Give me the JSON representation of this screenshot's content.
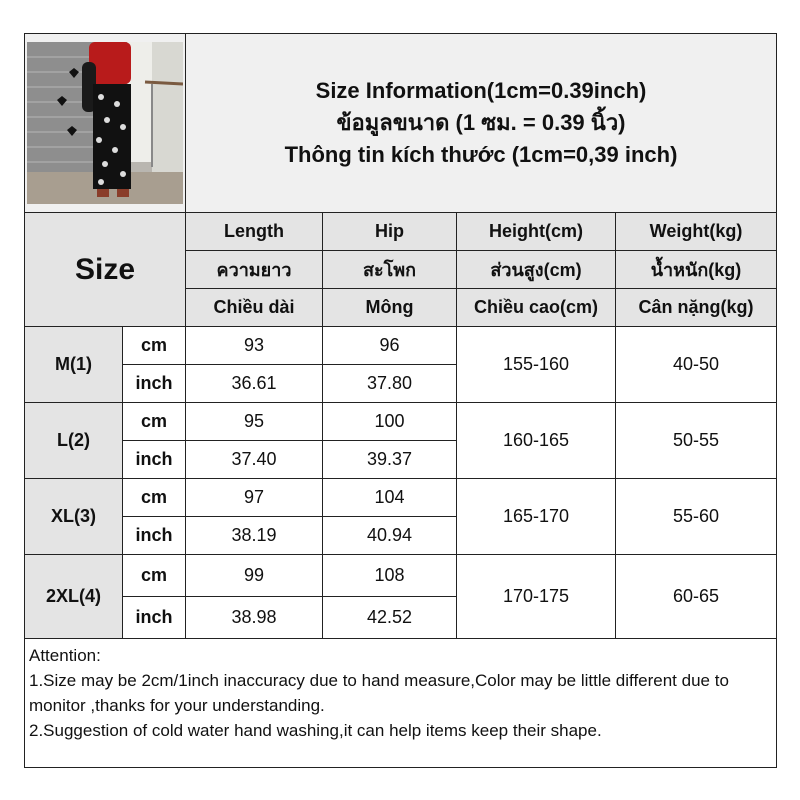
{
  "title": {
    "line1": "Size Information(1cm=0.39inch)",
    "line2": "ข้อมูลขนาด (1 ซม. = 0.39 นิ้ว)",
    "line3": "Thông tin kích thước (1cm=0,39 inch)"
  },
  "photo": {
    "alt": "product-photo"
  },
  "size_label": "Size",
  "headers": [
    [
      "Length",
      "Hip",
      "Height(cm)",
      "Weight(kg)"
    ],
    [
      "ความยาว",
      "สะโพก",
      "ส่วนสูง(cm)",
      "น้ำหนัก(kg)"
    ],
    [
      "Chiều dài",
      "Mông",
      "Chiều cao(cm)",
      "Cân nặng(kg)"
    ]
  ],
  "units": {
    "cm": "cm",
    "inch": "inch"
  },
  "rows": [
    {
      "size": "M(1)",
      "cm": [
        "93",
        "96"
      ],
      "inch": [
        "36.61",
        "37.80"
      ],
      "height": "155-160",
      "weight": "40-50"
    },
    {
      "size": "L(2)",
      "cm": [
        "95",
        "100"
      ],
      "inch": [
        "37.40",
        "39.37"
      ],
      "height": "160-165",
      "weight": "50-55"
    },
    {
      "size": "XL(3)",
      "cm": [
        "97",
        "104"
      ],
      "inch": [
        "38.19",
        "40.94"
      ],
      "height": "165-170",
      "weight": "55-60"
    },
    {
      "size": "2XL(4)",
      "cm": [
        "99",
        "108"
      ],
      "inch": [
        "38.98",
        "42.52"
      ],
      "height": "170-175",
      "weight": "60-65"
    }
  ],
  "attention": {
    "heading": "Attention:",
    "line1": "1.Size may be 2cm/1inch inaccuracy due to hand measure,Color may be little different due to monitor ,thanks for your understanding.",
    "line2": "2.Suggestion of cold water hand washing,it can help items keep their shape."
  },
  "colors": {
    "header_bg": "#e4e4e4",
    "title_bg": "#f0f0f0",
    "border": "#222222"
  }
}
